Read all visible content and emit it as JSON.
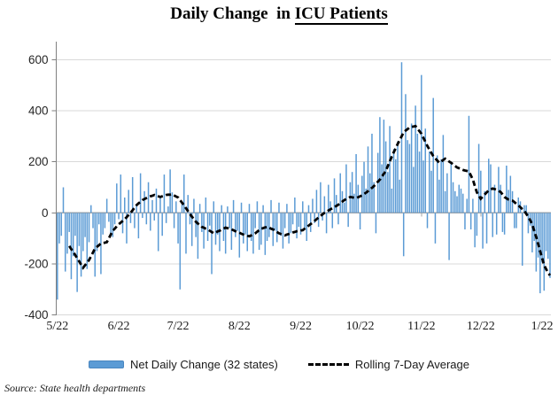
{
  "title": {
    "prefix": "Daily Change  in ",
    "underlined": "ICU Patients"
  },
  "source_note": "Source: State health departments",
  "legend": {
    "bar_label": "Net Daily Change (32 states)",
    "line_label": "Rolling 7-Day Average"
  },
  "colors": {
    "bar": "#5B9BD5",
    "avg_line": "#000000",
    "gridline": "#D9D9D9",
    "zero_axis": "#A6A6A6",
    "y_axis": "#808080"
  },
  "chart_data": {
    "type": "bar",
    "title": "Daily Change in ICU Patients",
    "xlabel": "",
    "ylabel": "",
    "ylim": [
      -400,
      670
    ],
    "y_ticks": [
      600,
      400,
      200,
      0,
      -200,
      -400
    ],
    "grid": "horizontal",
    "legend_position": "bottom",
    "x_tick_labels": [
      "5/22",
      "6/22",
      "7/22",
      "8/22",
      "9/22",
      "10/22",
      "11/22",
      "12/22",
      "1/22"
    ],
    "x_tick_indices": [
      0,
      31,
      61,
      92,
      123,
      153,
      184,
      214,
      245
    ],
    "series": [
      {
        "name": "Net Daily Change (32 states)",
        "type": "bar",
        "values": [
          -340,
          -120,
          -90,
          100,
          -230,
          -160,
          -75,
          -260,
          -170,
          -90,
          -310,
          -130,
          -250,
          -150,
          -95,
          -220,
          -115,
          30,
          -60,
          -250,
          -150,
          -45,
          -240,
          -85,
          -60,
          55,
          -35,
          -90,
          -95,
          -45,
          115,
          -25,
          150,
          -80,
          60,
          -120,
          90,
          -40,
          140,
          -60,
          30,
          -100,
          155,
          -20,
          85,
          -45,
          120,
          -70,
          50,
          -30,
          95,
          -150,
          60,
          -90,
          150,
          -40,
          25,
          170,
          80,
          -60,
          45,
          -120,
          -300,
          40,
          150,
          -160,
          70,
          -45,
          -130,
          55,
          -95,
          -180,
          35,
          -75,
          -140,
          60,
          -110,
          -50,
          -240,
          45,
          -125,
          -85,
          -150,
          30,
          -110,
          -160,
          25,
          -60,
          -145,
          50,
          -95,
          -70,
          -175,
          40,
          -120,
          -85,
          -150,
          35,
          -110,
          -160,
          -60,
          45,
          -145,
          -125,
          30,
          -165,
          -110,
          -95,
          50,
          -130,
          -70,
          -115,
          40,
          -90,
          -140,
          -60,
          35,
          -120,
          -80,
          -45,
          60,
          -100,
          -55,
          -85,
          45,
          -60,
          -110,
          30,
          -75,
          55,
          -40,
          90,
          -55,
          120,
          -30,
          65,
          -80,
          110,
          45,
          -60,
          135,
          70,
          -45,
          155,
          85,
          40,
          190,
          -55,
          120,
          160,
          75,
          230,
          110,
          -65,
          145,
          200,
          95,
          260,
          155,
          310,
          120,
          -80,
          235,
          375,
          190,
          365,
          280,
          160,
          340,
          95,
          250,
          210,
          280,
          130,
          590,
          -170,
          465,
          285,
          270,
          350,
          180,
          420,
          310,
          240,
          540,
          205,
          330,
          -60,
          240,
          165,
          450,
          -120,
          225,
          130,
          210,
          305,
          85,
          155,
          -185,
          195,
          120,
          85,
          65,
          110,
          95,
          75,
          -65,
          55,
          380,
          -65,
          55,
          -135,
          -90,
          270,
          165,
          -140,
          85,
          -120,
          212,
          190,
          -95,
          110,
          -85,
          180,
          110,
          -75,
          -85,
          185,
          90,
          145,
          85,
          -60,
          -60,
          60,
          45,
          -207,
          30,
          30,
          -80,
          -50,
          -155,
          -110,
          -230,
          -175,
          -315,
          -195,
          -305,
          -150,
          -180,
          -255
        ]
      },
      {
        "name": "Rolling 7-Day Average",
        "type": "line",
        "dashed": true,
        "values": [
          null,
          null,
          null,
          null,
          null,
          null,
          -130,
          -142,
          -153,
          -165,
          -178,
          -190,
          -203,
          -215,
          -205,
          -195,
          -185,
          -170,
          -155,
          -140,
          -133,
          -127,
          -120,
          -118,
          -117,
          -115,
          -100,
          -85,
          -70,
          -62,
          -53,
          -45,
          -38,
          -32,
          -25,
          -17,
          -8,
          0,
          10,
          20,
          30,
          37,
          43,
          50,
          54,
          58,
          62,
          65,
          67,
          70,
          67,
          65,
          62,
          65,
          67,
          70,
          71,
          71,
          72,
          68,
          64,
          60,
          50,
          40,
          30,
          18,
          7,
          -5,
          -15,
          -25,
          -35,
          -42,
          -48,
          -55,
          -58,
          -62,
          -65,
          -70,
          -75,
          -80,
          -77,
          -73,
          -70,
          -66,
          -62,
          -58,
          -60,
          -63,
          -65,
          -68,
          -72,
          -75,
          -78,
          -82,
          -85,
          -87,
          -90,
          -92,
          -88,
          -84,
          -80,
          -74,
          -68,
          -62,
          -60,
          -57,
          -55,
          -58,
          -62,
          -65,
          -70,
          -75,
          -80,
          -83,
          -85,
          -88,
          -85,
          -83,
          -80,
          -77,
          -75,
          -72,
          -71,
          -69,
          -68,
          -62,
          -56,
          -50,
          -44,
          -38,
          -32,
          -25,
          -18,
          -12,
          -6,
          0,
          5,
          9,
          14,
          18,
          23,
          27,
          32,
          38,
          44,
          50,
          54,
          58,
          62,
          61,
          59,
          58,
          61,
          65,
          68,
          74,
          79,
          85,
          92,
          98,
          105,
          113,
          122,
          130,
          142,
          153,
          165,
          183,
          202,
          220,
          237,
          253,
          270,
          285,
          300,
          315,
          322,
          328,
          335,
          337,
          338,
          340,
          330,
          320,
          310,
          294,
          278,
          262,
          249,
          235,
          222,
          213,
          205,
          196,
          201,
          207,
          212,
          207,
          201,
          196,
          190,
          184,
          178,
          175,
          171,
          168,
          166,
          164,
          162,
          146,
          130,
          105,
          80,
          68,
          55,
          64,
          72,
          80,
          88,
          92,
          95,
          93,
          90,
          86,
          82,
          72,
          62,
          57,
          52,
          50,
          48,
          42,
          35,
          29,
          22,
          15,
          8,
          -4,
          -15,
          -30,
          -45,
          -70,
          -95,
          -122,
          -150,
          -178,
          -205,
          -220,
          -235,
          -245
        ]
      }
    ]
  }
}
